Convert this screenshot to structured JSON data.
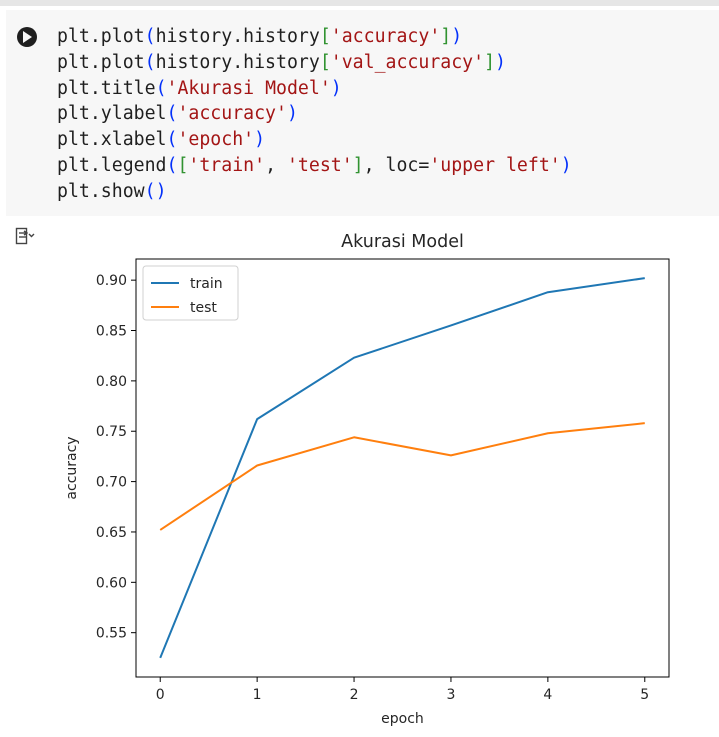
{
  "cell": {
    "run_icon": "play-circle-icon",
    "code_lines": [
      [
        {
          "t": "plt.plot",
          "c": "kw"
        },
        {
          "t": "(",
          "c": "b1"
        },
        {
          "t": "history.history",
          "c": "kw"
        },
        {
          "t": "[",
          "c": "b2"
        },
        {
          "t": "'accuracy'",
          "c": "str"
        },
        {
          "t": "]",
          "c": "b2"
        },
        {
          "t": ")",
          "c": "b1"
        }
      ],
      [
        {
          "t": "plt.plot",
          "c": "kw"
        },
        {
          "t": "(",
          "c": "b1"
        },
        {
          "t": "history.history",
          "c": "kw"
        },
        {
          "t": "[",
          "c": "b2"
        },
        {
          "t": "'val_accuracy'",
          "c": "str"
        },
        {
          "t": "]",
          "c": "b2"
        },
        {
          "t": ")",
          "c": "b1"
        }
      ],
      [
        {
          "t": "plt.title",
          "c": "kw"
        },
        {
          "t": "(",
          "c": "b1"
        },
        {
          "t": "'Akurasi Model'",
          "c": "str"
        },
        {
          "t": ")",
          "c": "b1"
        }
      ],
      [
        {
          "t": "plt.ylabel",
          "c": "kw"
        },
        {
          "t": "(",
          "c": "b1"
        },
        {
          "t": "'accuracy'",
          "c": "str"
        },
        {
          "t": ")",
          "c": "b1"
        }
      ],
      [
        {
          "t": "plt.xlabel",
          "c": "kw"
        },
        {
          "t": "(",
          "c": "b1"
        },
        {
          "t": "'epoch'",
          "c": "str"
        },
        {
          "t": ")",
          "c": "b1"
        }
      ],
      [
        {
          "t": "plt.legend",
          "c": "kw"
        },
        {
          "t": "(",
          "c": "b1"
        },
        {
          "t": "[",
          "c": "b2"
        },
        {
          "t": "'train'",
          "c": "str"
        },
        {
          "t": ", ",
          "c": "kw"
        },
        {
          "t": "'test'",
          "c": "str"
        },
        {
          "t": "]",
          "c": "b2"
        },
        {
          "t": ", loc=",
          "c": "kw"
        },
        {
          "t": "'upper left'",
          "c": "str"
        },
        {
          "t": ")",
          "c": "b1"
        }
      ],
      [
        {
          "t": "plt.show",
          "c": "kw"
        },
        {
          "t": "(",
          "c": "b1"
        },
        {
          "t": ")",
          "c": "b1"
        }
      ]
    ]
  },
  "output": {
    "output_icon": "output-actions-icon"
  },
  "colors": {
    "train": "#1f77b4",
    "test": "#ff7f0e",
    "code_string": "#a31515",
    "code_bracket_round": "#0431fa",
    "code_bracket_square": "#319331"
  },
  "chart_data": {
    "type": "line",
    "title": "Akurasi Model",
    "xlabel": "epoch",
    "ylabel": "accuracy",
    "x": [
      0,
      1,
      2,
      3,
      4,
      5
    ],
    "series": [
      {
        "name": "train",
        "values": [
          0.525,
          0.762,
          0.823,
          0.855,
          0.888,
          0.902
        ]
      },
      {
        "name": "test",
        "values": [
          0.652,
          0.716,
          0.744,
          0.726,
          0.748,
          0.758
        ]
      }
    ],
    "xticks": [
      "0",
      "1",
      "2",
      "3",
      "4",
      "5"
    ],
    "yticks": [
      0.55,
      0.6,
      0.65,
      0.7,
      0.75,
      0.8,
      0.85,
      0.9
    ],
    "ytick_labels": [
      "0.55",
      "0.60",
      "0.65",
      "0.70",
      "0.75",
      "0.80",
      "0.85",
      "0.90"
    ],
    "xlim": [
      -0.25,
      5.25
    ],
    "ylim": [
      0.506,
      0.921
    ],
    "grid": false,
    "legend_loc": "upper left"
  }
}
